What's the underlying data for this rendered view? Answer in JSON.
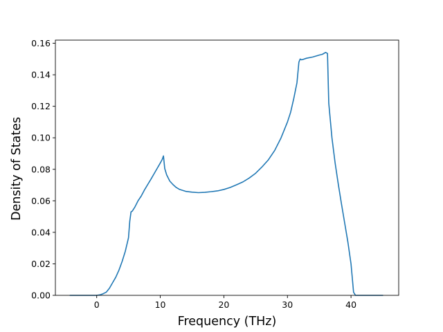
{
  "chart_data": {
    "type": "line",
    "title": "",
    "xlabel": "Frequency (THz)",
    "ylabel": "Density of States",
    "xlim": [
      -6.5,
      47.5
    ],
    "ylim": [
      0.0,
      0.162
    ],
    "xticks": [
      0,
      10,
      20,
      30,
      40
    ],
    "xtick_labels": [
      "0",
      "10",
      "20",
      "30",
      "40"
    ],
    "yticks": [
      0.0,
      0.02,
      0.04,
      0.06,
      0.08,
      0.1,
      0.12,
      0.14,
      0.16
    ],
    "ytick_labels": [
      "0.00",
      "0.02",
      "0.04",
      "0.06",
      "0.08",
      "0.10",
      "0.12",
      "0.14",
      "0.16"
    ],
    "grid": false,
    "legend": "none",
    "line_color": "#1f77b4",
    "series": [
      {
        "x": [
          -4.2,
          -3,
          -2,
          -1,
          0,
          0.5,
          1,
          1.5,
          2,
          2.5,
          3,
          3.5,
          4,
          4.5,
          5,
          5.2,
          5.4,
          5.6,
          6,
          6.5,
          7,
          7.5,
          8,
          8.5,
          9,
          9.5,
          10,
          10.3,
          10.5,
          10.7,
          11,
          11.5,
          12,
          12.5,
          13,
          14,
          15,
          16,
          17,
          18,
          19,
          20,
          21,
          22,
          23,
          24,
          25,
          26,
          27,
          28,
          29,
          30,
          30.5,
          31,
          31.5,
          31.8,
          32,
          32.2,
          32.5,
          33,
          34,
          35,
          35.5,
          36,
          36.3,
          36.5,
          37,
          37.5,
          38,
          38.5,
          39,
          39.5,
          40,
          40.4,
          40.7,
          41,
          42,
          43,
          44,
          45
        ],
        "y": [
          0.0,
          0.0,
          0.0,
          0.0,
          0.0,
          0.0003,
          0.001,
          0.002,
          0.0045,
          0.008,
          0.0115,
          0.016,
          0.0215,
          0.028,
          0.0365,
          0.047,
          0.053,
          0.0535,
          0.056,
          0.06,
          0.063,
          0.0668,
          0.0702,
          0.0735,
          0.077,
          0.0805,
          0.084,
          0.0862,
          0.0885,
          0.0805,
          0.0765,
          0.0725,
          0.0703,
          0.0685,
          0.0673,
          0.066,
          0.0655,
          0.0652,
          0.0654,
          0.0658,
          0.0663,
          0.0672,
          0.0685,
          0.0702,
          0.072,
          0.0745,
          0.0775,
          0.0815,
          0.086,
          0.092,
          0.1,
          0.11,
          0.1162,
          0.125,
          0.135,
          0.148,
          0.15,
          0.1495,
          0.1498,
          0.1505,
          0.1513,
          0.1525,
          0.153,
          0.1542,
          0.1535,
          0.122,
          0.1,
          0.084,
          0.0705,
          0.058,
          0.046,
          0.034,
          0.02,
          0.002,
          0.0,
          0.0,
          0.0,
          0.0,
          0.0,
          0.0
        ]
      }
    ]
  }
}
